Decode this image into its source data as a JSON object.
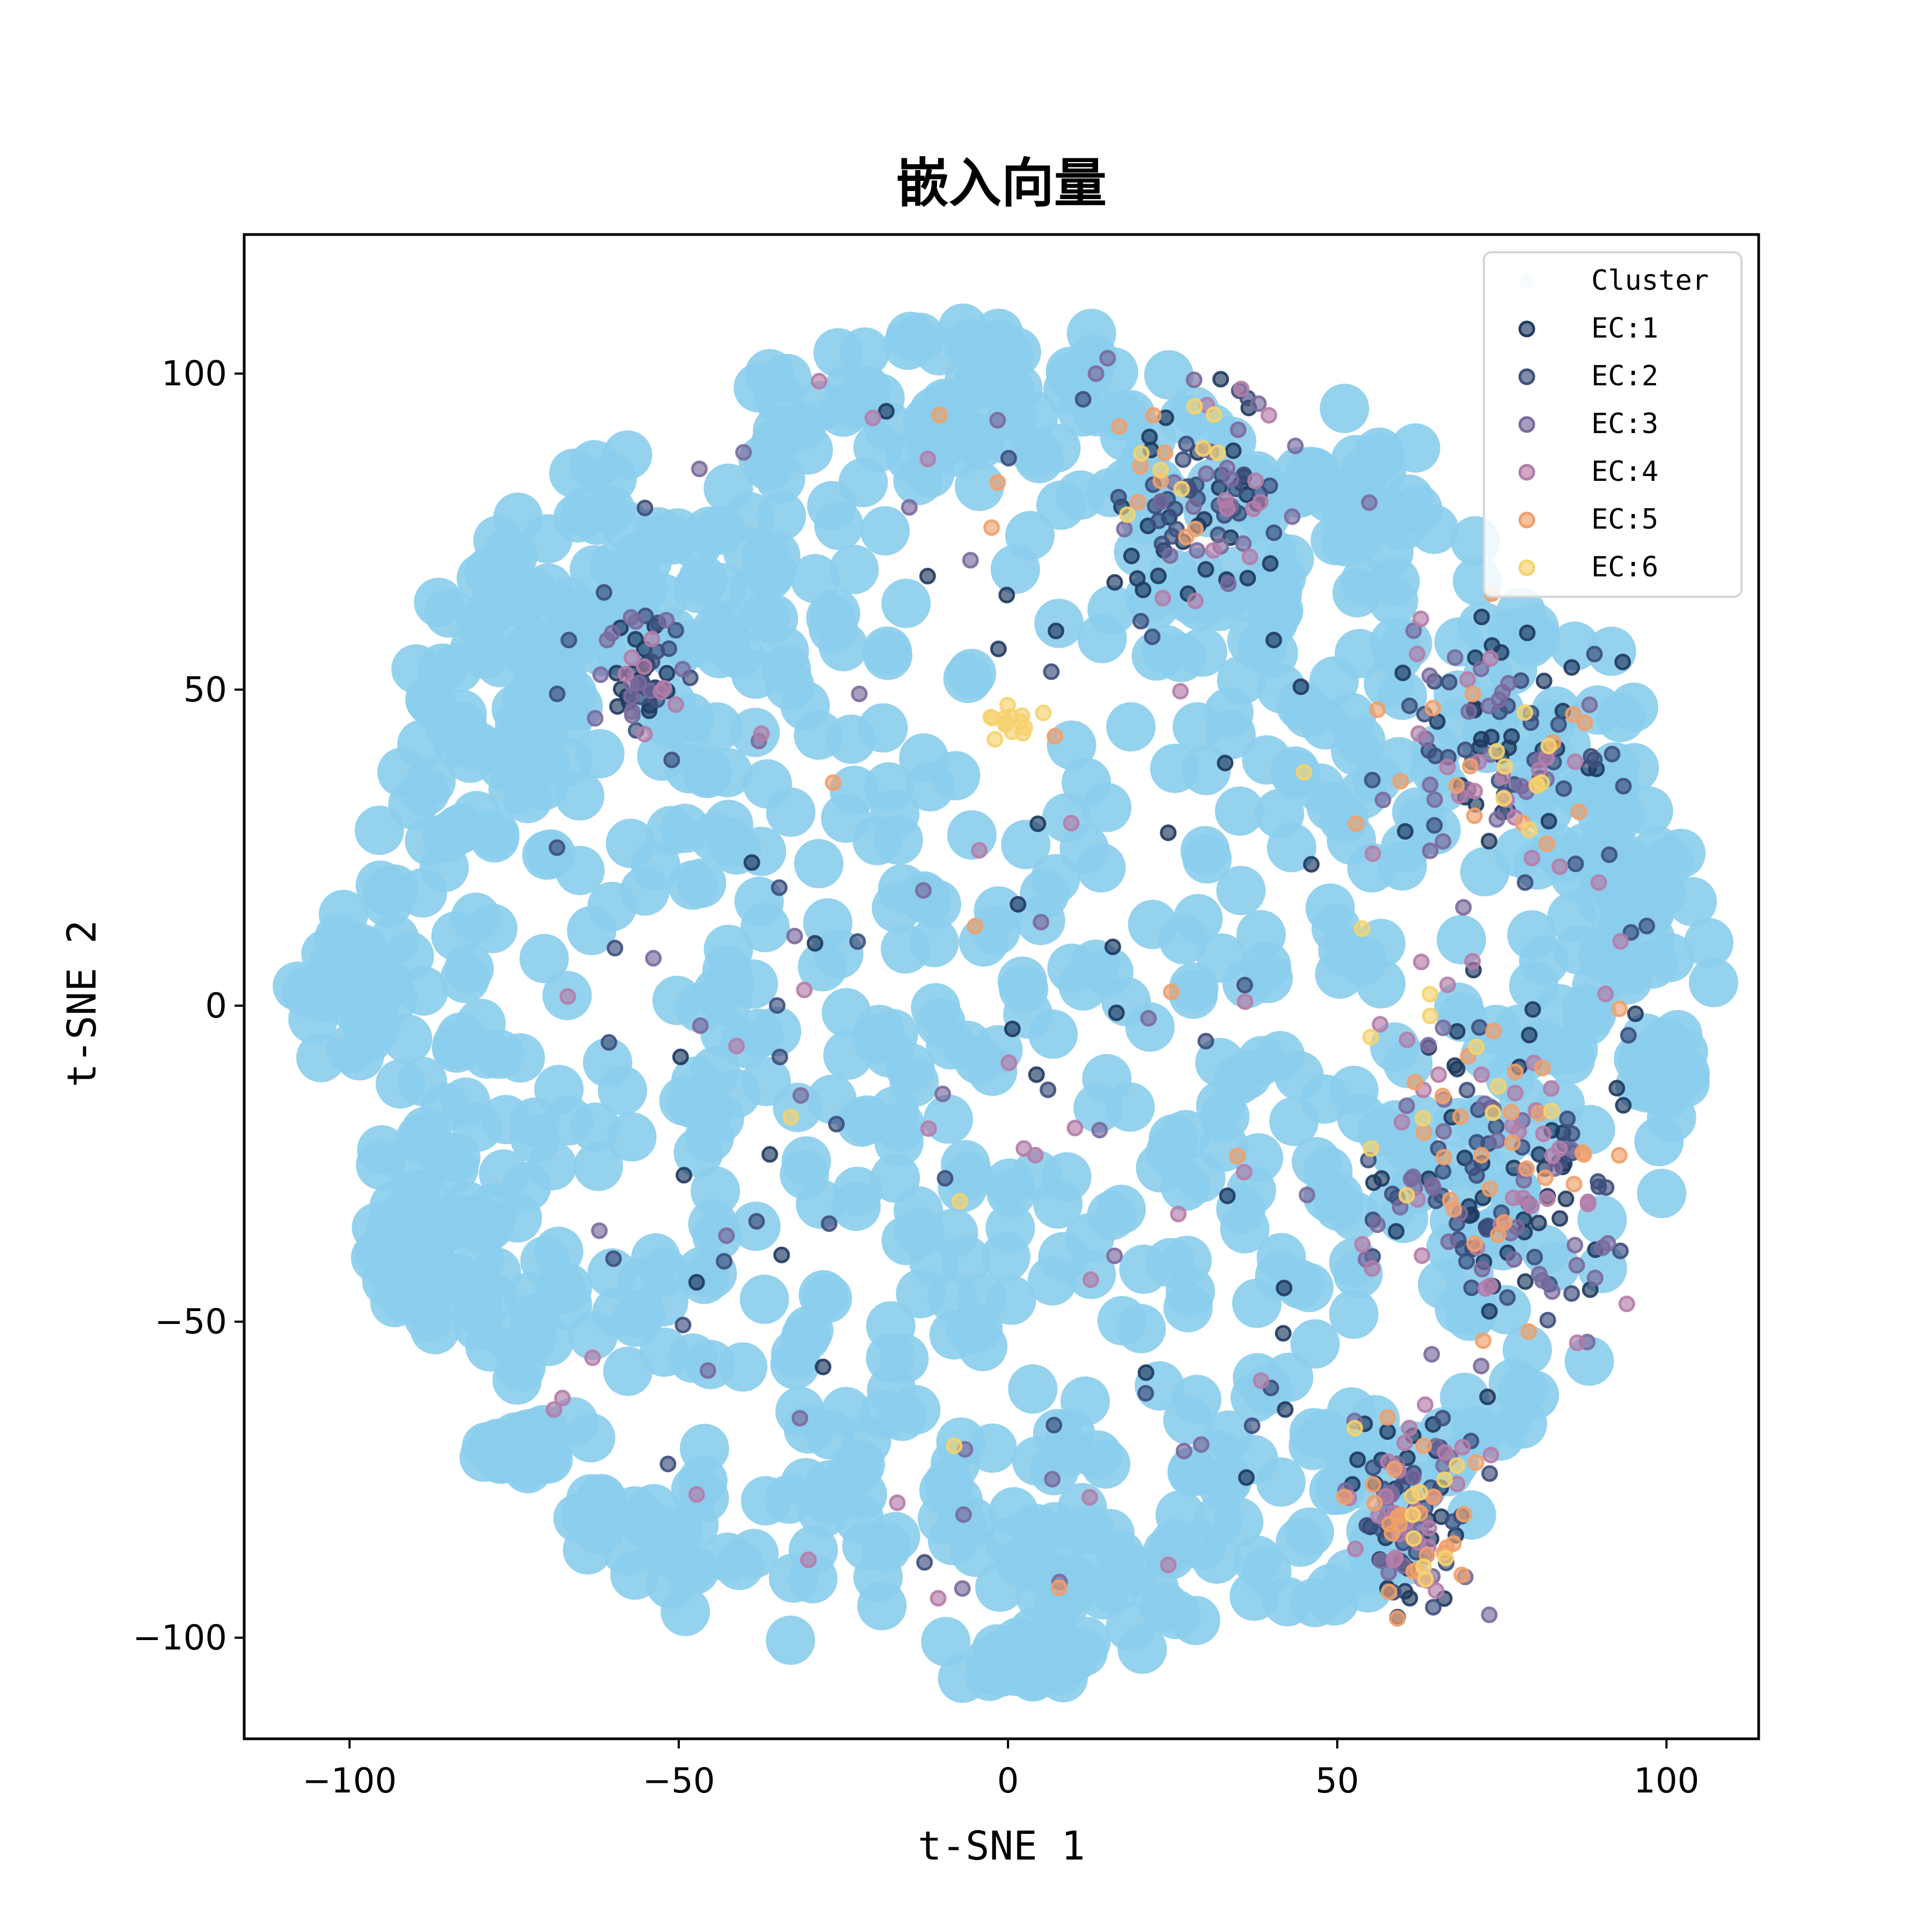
{
  "chart_data": {
    "type": "scatter",
    "title": "嵌入向量",
    "xlabel": "t-SNE 1",
    "ylabel": "t-SNE 2",
    "xlim": [
      -116,
      114
    ],
    "ylim": [
      -116,
      122
    ],
    "xticks": [
      -100,
      -50,
      0,
      50,
      100
    ],
    "yticks": [
      -100,
      -50,
      0,
      50,
      100
    ],
    "xtick_labels": [
      "−100",
      "−50",
      "0",
      "50",
      "100"
    ],
    "ytick_labels": [
      "−100",
      "−50",
      "0",
      "50",
      "100"
    ],
    "grid": false,
    "legend": {
      "placement": "top-right",
      "title": "Cluster",
      "entries": [
        "EC:1",
        "EC:2",
        "EC:3",
        "EC:4",
        "EC:5",
        "EC:6"
      ]
    },
    "background_series": {
      "name": "Cluster",
      "color": "#89CDEC",
      "blobs": [
        [
          -70,
          72,
          14,
          16
        ],
        [
          -62,
          52,
          18,
          14
        ],
        [
          -80,
          40,
          8,
          14
        ],
        [
          -88,
          12,
          10,
          16
        ],
        [
          -80,
          -20,
          16,
          22
        ],
        [
          -70,
          -50,
          12,
          10
        ],
        [
          -75,
          -70,
          4,
          2
        ],
        [
          -40,
          70,
          18,
          20
        ],
        [
          -30,
          40,
          24,
          18
        ],
        [
          -20,
          90,
          16,
          14
        ],
        [
          -8,
          100,
          16,
          12
        ],
        [
          10,
          95,
          14,
          12
        ],
        [
          25,
          80,
          18,
          18
        ],
        [
          -50,
          0,
          22,
          26
        ],
        [
          -25,
          -10,
          25,
          28
        ],
        [
          0,
          10,
          28,
          32
        ],
        [
          25,
          0,
          28,
          32
        ],
        [
          50,
          30,
          22,
          28
        ],
        [
          55,
          -20,
          22,
          26
        ],
        [
          -30,
          -50,
          30,
          26
        ],
        [
          0,
          -55,
          30,
          30
        ],
        [
          30,
          -50,
          25,
          28
        ],
        [
          -20,
          -80,
          22,
          16
        ],
        [
          10,
          -90,
          20,
          14
        ],
        [
          40,
          -80,
          18,
          16
        ],
        [
          70,
          60,
          18,
          18
        ],
        [
          80,
          30,
          18,
          22
        ],
        [
          85,
          0,
          14,
          22
        ],
        [
          75,
          -40,
          20,
          24
        ],
        [
          65,
          -80,
          16,
          18
        ],
        [
          95,
          20,
          6,
          14
        ],
        [
          40,
          60,
          20,
          18
        ],
        [
          55,
          80,
          8,
          10
        ],
        [
          -55,
          -85,
          12,
          8
        ],
        [
          100,
          -10,
          4,
          4
        ],
        [
          -100,
          0,
          6,
          8
        ],
        [
          -90,
          -40,
          6,
          10
        ],
        [
          60,
          -95,
          8,
          6
        ],
        [
          2,
          -104,
          6,
          3
        ]
      ],
      "n_points": 1300
    },
    "series": [
      {
        "name": "EC:1",
        "color": "#1F3A5F",
        "hotspots": [
          [
            -55,
            52,
            5,
            8,
            22
          ],
          [
            30,
            80,
            10,
            14,
            30
          ],
          [
            75,
            45,
            12,
            14,
            30
          ],
          [
            75,
            -30,
            18,
            20,
            40
          ],
          [
            60,
            -80,
            8,
            12,
            28
          ]
        ],
        "n_points": 190
      },
      {
        "name": "EC:2",
        "color": "#3D4F7D",
        "hotspots": [
          [
            -55,
            52,
            5,
            8,
            12
          ],
          [
            30,
            80,
            10,
            14,
            26
          ],
          [
            75,
            40,
            14,
            14,
            28
          ],
          [
            75,
            -30,
            18,
            20,
            40
          ],
          [
            62,
            -80,
            8,
            12,
            24
          ]
        ],
        "n_points": 175
      },
      {
        "name": "EC:3",
        "color": "#7A6A9C",
        "hotspots": [
          [
            -55,
            52,
            5,
            8,
            10
          ],
          [
            30,
            80,
            10,
            14,
            20
          ],
          [
            75,
            40,
            14,
            14,
            22
          ],
          [
            75,
            -30,
            18,
            20,
            34
          ],
          [
            62,
            -80,
            8,
            12,
            24
          ]
        ],
        "n_points": 155
      },
      {
        "name": "EC:4",
        "color": "#B47DA8",
        "hotspots": [
          [
            -55,
            52,
            5,
            8,
            8
          ],
          [
            30,
            80,
            10,
            14,
            12
          ],
          [
            75,
            40,
            14,
            14,
            16
          ],
          [
            75,
            -25,
            18,
            20,
            30
          ],
          [
            62,
            -80,
            8,
            12,
            26
          ]
        ],
        "n_points": 130
      },
      {
        "name": "EC:5",
        "color": "#F0A06A",
        "hotspots": [
          [
            25,
            85,
            10,
            12,
            8
          ],
          [
            75,
            35,
            14,
            14,
            14
          ],
          [
            75,
            -20,
            14,
            16,
            24
          ],
          [
            62,
            -80,
            8,
            12,
            24
          ]
        ],
        "n_points": 85
      },
      {
        "name": "EC:6",
        "color": "#F6D36E",
        "hotspots": [
          [
            0,
            45,
            4,
            3,
            14
          ],
          [
            25,
            85,
            10,
            12,
            8
          ],
          [
            78,
            35,
            10,
            10,
            8
          ],
          [
            70,
            -10,
            14,
            16,
            10
          ],
          [
            60,
            -80,
            8,
            12,
            10
          ]
        ],
        "n_points": 55
      }
    ]
  }
}
